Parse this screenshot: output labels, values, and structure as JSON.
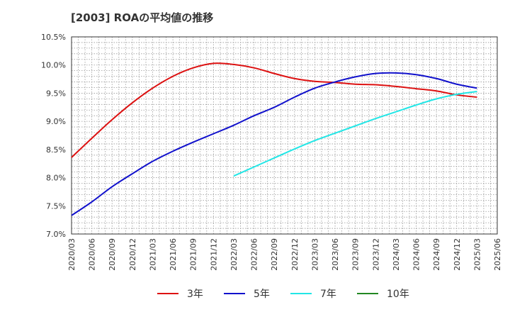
{
  "chart_data": {
    "type": "line",
    "title": "[2003]  ROAの平均値の推移",
    "xlabel": "",
    "ylabel": "",
    "x": [
      "2020/03",
      "2020/06",
      "2020/09",
      "2020/12",
      "2021/03",
      "2021/06",
      "2021/09",
      "2021/12",
      "2022/03",
      "2022/06",
      "2022/09",
      "2022/12",
      "2023/03",
      "2023/06",
      "2023/09",
      "2023/12",
      "2024/03",
      "2024/06",
      "2024/09",
      "2024/12",
      "2025/03",
      "2025/06"
    ],
    "ylim": [
      7.0,
      10.5
    ],
    "yticks": [
      "7.0%",
      "7.5%",
      "8.0%",
      "8.5%",
      "9.0%",
      "9.5%",
      "10.0%",
      "10.5%"
    ],
    "grid": true,
    "legend_position": "bottom",
    "series": [
      {
        "name": "3年",
        "color": "#dd1111",
        "values": [
          8.36,
          8.7,
          9.03,
          9.33,
          9.59,
          9.8,
          9.95,
          10.03,
          10.01,
          9.95,
          9.85,
          9.76,
          9.71,
          9.69,
          9.66,
          9.65,
          9.62,
          9.58,
          9.54,
          9.47,
          9.43,
          null
        ]
      },
      {
        "name": "5年",
        "color": "#1111cc",
        "values": [
          7.33,
          7.57,
          7.84,
          8.07,
          8.29,
          8.47,
          8.63,
          8.78,
          8.93,
          9.1,
          9.25,
          9.43,
          9.59,
          9.7,
          9.79,
          9.85,
          9.86,
          9.83,
          9.76,
          9.66,
          9.59,
          null
        ]
      },
      {
        "name": "7年",
        "color": "#22e6e6",
        "values": [
          null,
          null,
          null,
          null,
          null,
          null,
          null,
          null,
          8.03,
          8.19,
          8.35,
          8.51,
          8.66,
          8.79,
          8.92,
          9.05,
          9.17,
          9.29,
          9.4,
          9.48,
          9.53,
          null
        ]
      },
      {
        "name": "10年",
        "color": "#228822",
        "values": [
          null,
          null,
          null,
          null,
          null,
          null,
          null,
          null,
          null,
          null,
          null,
          null,
          null,
          null,
          null,
          null,
          null,
          null,
          null,
          null,
          null,
          null
        ]
      }
    ]
  }
}
